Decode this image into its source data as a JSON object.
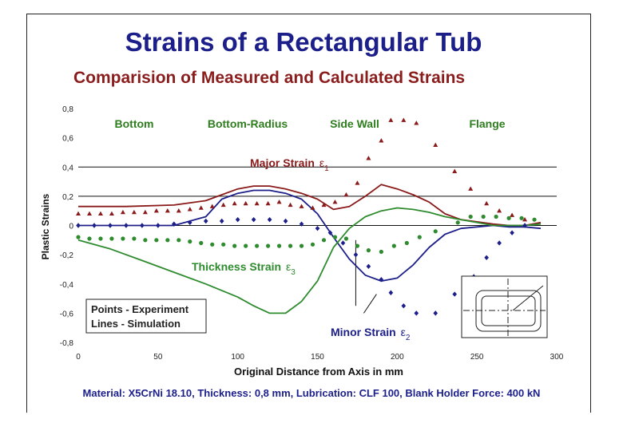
{
  "slide_title": "Strains of a Rectangular Tub",
  "footer": "Material: X5CrNi 18.10, Thickness: 0,8 mm, Lubrication: CLF 100, Blank Holder Force: 400 kN",
  "colors": {
    "major": "#8b1a1a",
    "minor": "#1c1f8a",
    "thickness": "#2e8b2e",
    "zone_label": "#2e7d1e"
  },
  "chart_data": {
    "type": "scatter",
    "title": "Comparision of Measured and Calculated Strains",
    "xlabel": "Original Distance from Axis in mm",
    "ylabel": "Plastic Strains",
    "xlim": [
      0,
      300
    ],
    "ylim": [
      -0.8,
      0.8
    ],
    "x_ticks": [
      "0",
      "50",
      "100",
      "150",
      "200",
      "250",
      "300"
    ],
    "y_ticks": [
      "0,8",
      "0,6",
      "0,4",
      "0,2",
      "0",
      "-0,2",
      "-0,4",
      "-0,6",
      "-0,8"
    ],
    "zone_labels": [
      "Bottom",
      "Bottom-Radius",
      "Side Wall",
      "Flange"
    ],
    "legend_lines": [
      "Points - Experiment",
      "Lines   - Simulation"
    ],
    "annotations": {
      "major": {
        "label": "Major Strain",
        "symbol": "ε",
        "sub": "1"
      },
      "thickness": {
        "label": "Thickness Strain",
        "symbol": "ε",
        "sub": "3"
      },
      "minor": {
        "label": "Minor Strain",
        "symbol": "ε",
        "sub": "2"
      }
    },
    "series": [
      {
        "key": "major_sim",
        "kind": "line",
        "x": [
          0,
          30,
          60,
          80,
          90,
          100,
          110,
          120,
          130,
          140,
          150,
          160,
          170,
          180,
          190,
          200,
          210,
          220,
          230,
          240,
          250,
          260,
          270,
          280,
          290
        ],
        "y": [
          0.13,
          0.13,
          0.14,
          0.17,
          0.21,
          0.25,
          0.27,
          0.27,
          0.25,
          0.22,
          0.18,
          0.11,
          0.13,
          0.2,
          0.28,
          0.25,
          0.21,
          0.16,
          0.08,
          0.04,
          0.025,
          0.01,
          0.0,
          0.0,
          0.02
        ]
      },
      {
        "key": "minor_sim",
        "kind": "line",
        "x": [
          0,
          30,
          60,
          80,
          90,
          100,
          110,
          120,
          130,
          140,
          150,
          160,
          170,
          180,
          190,
          200,
          210,
          220,
          230,
          240,
          250,
          260,
          270,
          280,
          290
        ],
        "y": [
          0.0,
          0.0,
          0.0,
          0.06,
          0.18,
          0.22,
          0.24,
          0.24,
          0.22,
          0.18,
          0.08,
          -0.08,
          -0.23,
          -0.34,
          -0.38,
          -0.36,
          -0.27,
          -0.15,
          -0.06,
          -0.02,
          -0.01,
          0.0,
          -0.01,
          -0.01,
          -0.02
        ]
      },
      {
        "key": "thickness_sim",
        "kind": "line",
        "x": [
          0,
          20,
          40,
          60,
          80,
          100,
          110,
          120,
          130,
          140,
          150,
          160,
          170,
          180,
          190,
          200,
          210,
          220,
          230,
          240,
          250,
          260,
          270,
          280,
          290
        ],
        "y": [
          -0.1,
          -0.16,
          -0.24,
          -0.32,
          -0.4,
          -0.49,
          -0.55,
          -0.6,
          -0.6,
          -0.52,
          -0.38,
          -0.15,
          -0.02,
          0.06,
          0.1,
          0.12,
          0.11,
          0.09,
          0.06,
          0.04,
          0.02,
          0.0,
          0.0,
          0.0,
          0.01
        ]
      },
      {
        "key": "major_exp",
        "kind": "triangle",
        "x": [
          0,
          7,
          14,
          21,
          28,
          35,
          42,
          49,
          56,
          63,
          70,
          77,
          84,
          91,
          98,
          105,
          112,
          119,
          126,
          133,
          140,
          147,
          154,
          161,
          168,
          175,
          182,
          190,
          196,
          204,
          212,
          224,
          236,
          246,
          256,
          264,
          272,
          280
        ],
        "y": [
          0.08,
          0.08,
          0.08,
          0.08,
          0.09,
          0.09,
          0.09,
          0.1,
          0.1,
          0.1,
          0.11,
          0.12,
          0.13,
          0.14,
          0.15,
          0.15,
          0.15,
          0.15,
          0.16,
          0.14,
          0.13,
          0.12,
          0.14,
          0.16,
          0.21,
          0.29,
          0.46,
          0.58,
          0.72,
          0.72,
          0.7,
          0.55,
          0.37,
          0.25,
          0.15,
          0.1,
          0.07,
          0.04
        ]
      },
      {
        "key": "minor_exp",
        "kind": "diamond",
        "x": [
          0,
          10,
          20,
          30,
          40,
          50,
          60,
          70,
          80,
          90,
          100,
          110,
          120,
          130,
          140,
          150,
          158,
          166,
          174,
          182,
          190,
          196,
          204,
          212,
          224,
          236,
          248,
          256,
          264,
          272,
          280
        ],
        "y": [
          0.0,
          0.0,
          0.0,
          0.0,
          0.0,
          0.0,
          0.01,
          0.02,
          0.03,
          0.03,
          0.04,
          0.04,
          0.04,
          0.03,
          0.01,
          -0.02,
          -0.05,
          -0.12,
          -0.2,
          -0.28,
          -0.37,
          -0.46,
          -0.55,
          -0.6,
          -0.6,
          -0.47,
          -0.35,
          -0.22,
          -0.12,
          -0.05,
          0.0
        ]
      },
      {
        "key": "thickness_exp",
        "kind": "circle",
        "x": [
          0,
          7,
          14,
          21,
          28,
          35,
          42,
          49,
          56,
          63,
          70,
          77,
          84,
          91,
          98,
          105,
          112,
          119,
          126,
          133,
          140,
          147,
          154,
          161,
          168,
          175,
          182,
          190,
          198,
          206,
          214,
          224,
          238,
          246,
          254,
          262,
          270,
          278,
          286
        ],
        "y": [
          -0.08,
          -0.09,
          -0.09,
          -0.09,
          -0.09,
          -0.09,
          -0.1,
          -0.1,
          -0.1,
          -0.1,
          -0.11,
          -0.12,
          -0.13,
          -0.13,
          -0.14,
          -0.14,
          -0.14,
          -0.14,
          -0.14,
          -0.14,
          -0.14,
          -0.13,
          -0.1,
          -0.08,
          -0.09,
          -0.14,
          -0.17,
          -0.18,
          -0.14,
          -0.12,
          -0.08,
          -0.04,
          0.02,
          0.06,
          0.06,
          0.06,
          0.05,
          0.05,
          0.04
        ]
      }
    ]
  }
}
